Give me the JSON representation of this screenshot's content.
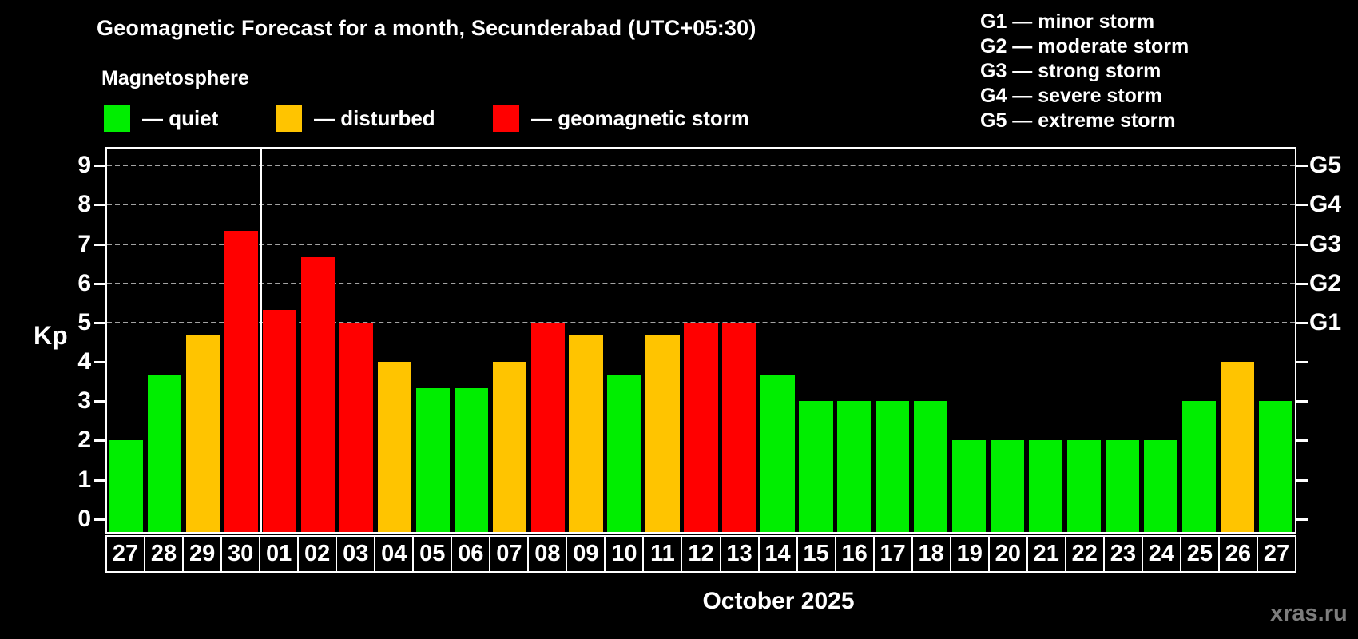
{
  "header": {
    "title": "Geomagnetic Forecast for a month, Secunderabad (UTC+05:30)",
    "subtitle": "Magnetosphere"
  },
  "legend": {
    "items": [
      {
        "label": "— quiet",
        "status": "quiet",
        "color": "#00ee00"
      },
      {
        "label": "— disturbed",
        "status": "disturbed",
        "color": "#ffc400"
      },
      {
        "label": "— geomagnetic storm",
        "status": "storm",
        "color": "#ff0000"
      }
    ]
  },
  "storm_scale_legend": {
    "items": [
      {
        "label": "G1 — minor storm"
      },
      {
        "label": "G2 — moderate storm"
      },
      {
        "label": "G3 — strong storm"
      },
      {
        "label": "G4 — severe storm"
      },
      {
        "label": "G5 — extreme storm"
      }
    ]
  },
  "chart_data": {
    "type": "bar",
    "title": "Geomagnetic Forecast for a month, Secunderabad (UTC+05:30)",
    "xlabel": "October 2025",
    "ylabel": "Kp",
    "ylim": [
      -0.33,
      9.43
    ],
    "yticks": [
      0,
      1,
      2,
      3,
      4,
      5,
      6,
      7,
      8,
      9
    ],
    "gridlines_at": [
      5,
      6,
      7,
      8,
      9
    ],
    "grid": "dashed horizontal at Kp 5-9 only",
    "right_axis_labels": [
      {
        "label": "G1",
        "kp": 5
      },
      {
        "label": "G2",
        "kp": 6
      },
      {
        "label": "G3",
        "kp": 7
      },
      {
        "label": "G4",
        "kp": 8
      },
      {
        "label": "G5",
        "kp": 9
      }
    ],
    "month_boundary_after_index": 3,
    "categories": [
      "27",
      "28",
      "29",
      "30",
      "01",
      "02",
      "03",
      "04",
      "05",
      "06",
      "07",
      "08",
      "09",
      "10",
      "11",
      "12",
      "13",
      "14",
      "15",
      "16",
      "17",
      "18",
      "19",
      "20",
      "21",
      "22",
      "23",
      "24",
      "25",
      "26",
      "27"
    ],
    "values": [
      2.0,
      3.67,
      4.67,
      7.33,
      5.33,
      6.67,
      5.0,
      4.0,
      3.33,
      3.33,
      4.0,
      5.0,
      4.67,
      3.67,
      4.67,
      5.0,
      5.0,
      3.67,
      3.0,
      3.0,
      3.0,
      3.0,
      2.0,
      2.0,
      2.0,
      2.0,
      2.0,
      2.0,
      3.0,
      4.0,
      3.0
    ],
    "statuses": [
      "quiet",
      "quiet",
      "disturbed",
      "storm",
      "storm",
      "storm",
      "storm",
      "disturbed",
      "quiet",
      "quiet",
      "disturbed",
      "storm",
      "disturbed",
      "quiet",
      "disturbed",
      "storm",
      "storm",
      "quiet",
      "quiet",
      "quiet",
      "quiet",
      "quiet",
      "quiet",
      "quiet",
      "quiet",
      "quiet",
      "quiet",
      "quiet",
      "quiet",
      "disturbed",
      "quiet"
    ],
    "colors": {
      "quiet": "#00ee00",
      "disturbed": "#ffc400",
      "storm": "#ff0000"
    }
  },
  "footer": {
    "watermark": "xras.ru"
  }
}
